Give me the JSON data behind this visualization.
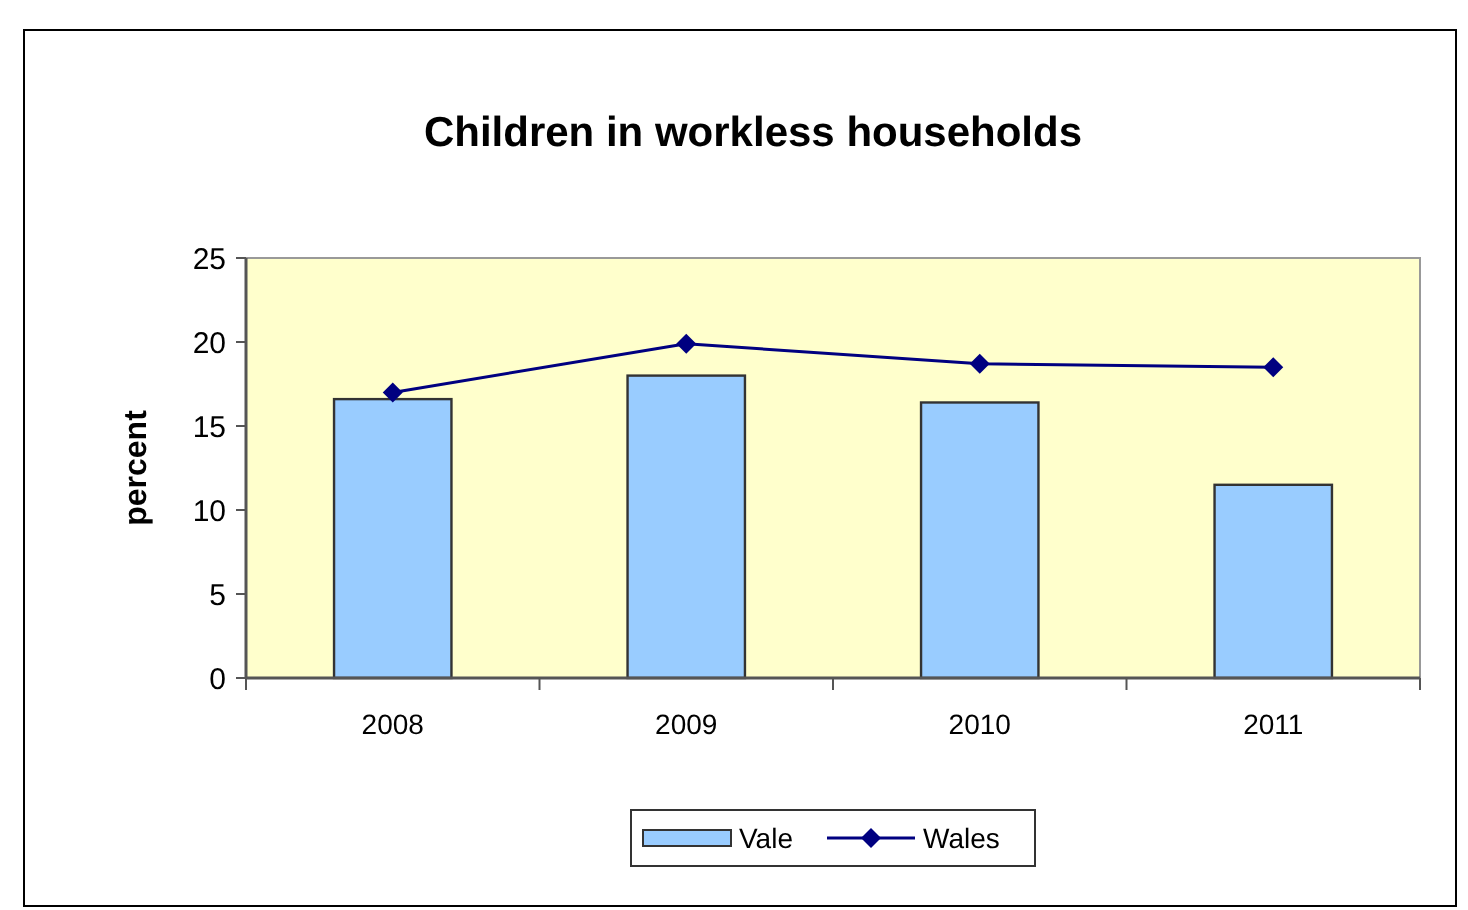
{
  "chart_data": {
    "type": "bar",
    "title": "Children in workless households",
    "ylabel": "percent",
    "categories": [
      "2008",
      "2009",
      "2010",
      "2011"
    ],
    "series": [
      {
        "name": "Vale",
        "color": "#99ccff",
        "values": [
          16.6,
          18.0,
          16.4,
          11.5
        ]
      },
      {
        "name": "Wales",
        "type": "line",
        "color": "#000080",
        "values": [
          17.0,
          19.9,
          18.7,
          18.5
        ],
        "marker": "diamond"
      }
    ],
    "ylim": [
      0,
      25
    ],
    "yticks": [
      0,
      5,
      10,
      15,
      20,
      25
    ],
    "grid": false,
    "legend": "bottom"
  }
}
